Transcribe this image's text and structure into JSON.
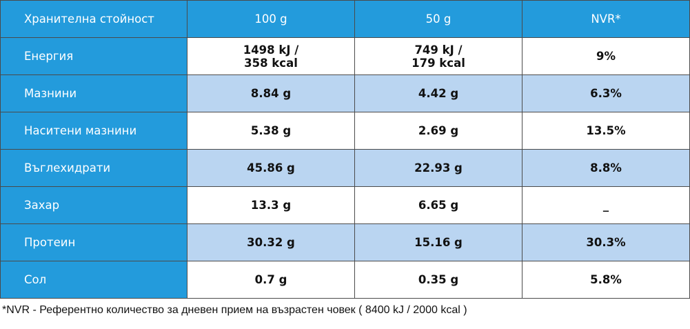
{
  "table": {
    "headers": [
      "Хранителна стойност",
      "100 g",
      "50 g",
      "NVR*"
    ],
    "rows": [
      {
        "label": "Енергия",
        "per100": "1498 kJ /\n358 kcal",
        "per50": "749 kJ /\n179 kcal",
        "nvr": "9%"
      },
      {
        "label": "Мазнини",
        "per100": "8.84 g",
        "per50": "4.42 g",
        "nvr": "6.3%"
      },
      {
        "label": "Наситени мазнини",
        "per100": "5.38 g",
        "per50": "2.69 g",
        "nvr": "13.5%"
      },
      {
        "label": "Въглехидрати",
        "per100": "45.86 g",
        "per50": "22.93 g",
        "nvr": "8.8%"
      },
      {
        "label": "Захар",
        "per100": "13.3 g",
        "per50": "6.65 g",
        "nvr": "_"
      },
      {
        "label": "Протеин",
        "per100": "30.32 g",
        "per50": "15.16 g",
        "nvr": "30.3%"
      },
      {
        "label": "Сол",
        "per100": "0.7 g",
        "per50": "0.35 g",
        "nvr": "5.8%"
      }
    ]
  },
  "footnote": "*NVR - Референтно количество за дневен прием на възрастен човек ( 8400 kJ / 2000 kcal )",
  "colors": {
    "header_blue": "#239bdc",
    "row_alt": "#bad5f1",
    "border": "#4a4a4a"
  }
}
